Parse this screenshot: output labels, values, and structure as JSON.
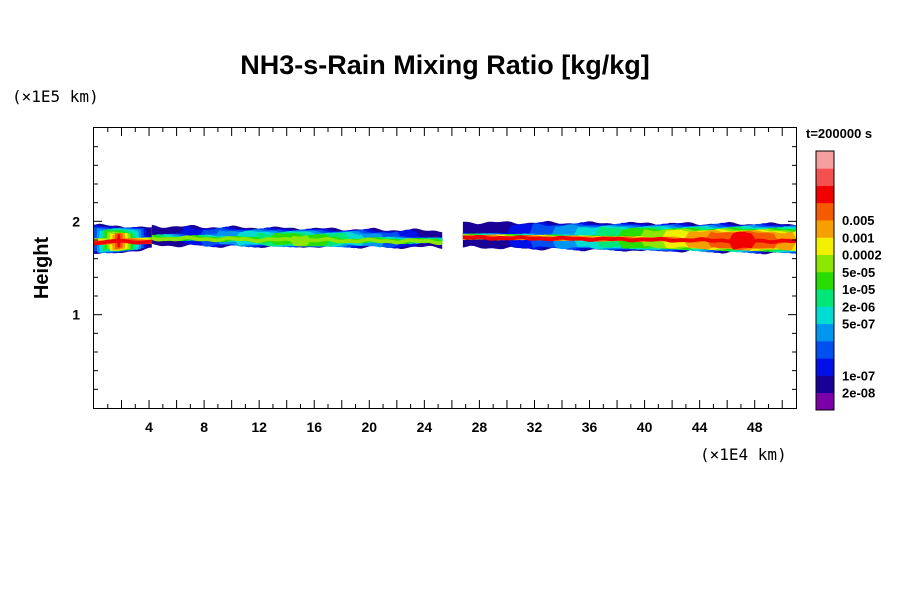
{
  "chart_data": {
    "type": "heatmap",
    "title": "NH3-s-Rain Mixing Ratio [kg/kg]",
    "ylabel": "Height",
    "x_multiplier_label": "(×1E4 km)",
    "y_multiplier_label": "(×1E5 km)",
    "time_label": "t=200000 s",
    "xlim": [
      0,
      51
    ],
    "ylim": [
      0,
      3
    ],
    "x_ticks": [
      4,
      8,
      12,
      16,
      20,
      24,
      28,
      32,
      36,
      40,
      44,
      48
    ],
    "y_ticks": [
      1,
      2
    ],
    "colorbar": {
      "colors": [
        "#7a00a8",
        "#1a0096",
        "#0010e6",
        "#0050f0",
        "#0096f0",
        "#00dcd2",
        "#00e678",
        "#28dc00",
        "#8ce600",
        "#f0f000",
        "#f5a000",
        "#f55a00",
        "#f00000",
        "#f55050",
        "#f5a0a0"
      ],
      "labels": [
        "2e-08",
        "1e-07",
        "5e-07",
        "2e-06",
        "1e-05",
        "5e-05",
        "0.0002",
        "0.001",
        "0.005"
      ]
    },
    "cloud_bands": [
      {
        "x": [
          0,
          4.2
        ],
        "base": [
          1.65,
          1.7
        ],
        "top": [
          1.96,
          1.93
        ],
        "peak_x": 1.8,
        "peak_level": 11
      },
      {
        "x": [
          4.2,
          25.3
        ],
        "base": [
          1.74,
          1.72
        ],
        "top": [
          1.95,
          1.9
        ],
        "peak_x": 15,
        "peak_level": 7
      },
      {
        "x": [
          26.8,
          51
        ],
        "base": [
          1.72,
          1.66
        ],
        "top": [
          1.99,
          1.97
        ],
        "peak_x": 47,
        "peak_level": 11
      }
    ]
  }
}
